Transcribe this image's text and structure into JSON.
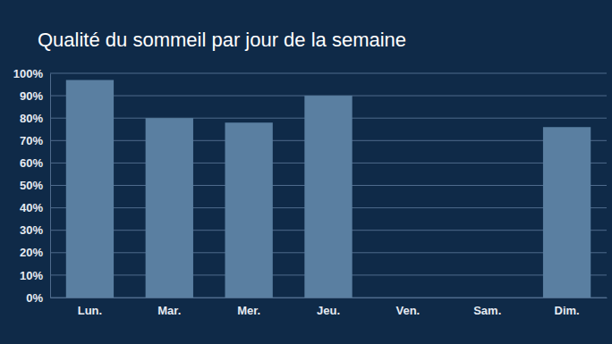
{
  "chart_data": {
    "type": "bar",
    "title": "Qualité du sommeil par jour de la semaine",
    "categories": [
      "Lun.",
      "Mar.",
      "Mer.",
      "Jeu.",
      "Ven.",
      "Sam.",
      "Dim."
    ],
    "values": [
      97,
      80,
      78,
      90,
      null,
      null,
      76
    ],
    "color": "#5a7fa1",
    "ylim": [
      0,
      100
    ],
    "yticks": [
      {
        "value": 0,
        "label": "0%"
      },
      {
        "value": 10,
        "label": "10%"
      },
      {
        "value": 20,
        "label": "20%"
      },
      {
        "value": 30,
        "label": "30%"
      },
      {
        "value": 40,
        "label": "40%"
      },
      {
        "value": 50,
        "label": "50%"
      },
      {
        "value": 60,
        "label": "60%"
      },
      {
        "value": 70,
        "label": "70%"
      },
      {
        "value": 80,
        "label": "80%"
      },
      {
        "value": 90,
        "label": "90%"
      },
      {
        "value": 100,
        "label": "100%"
      }
    ],
    "grid": true
  }
}
